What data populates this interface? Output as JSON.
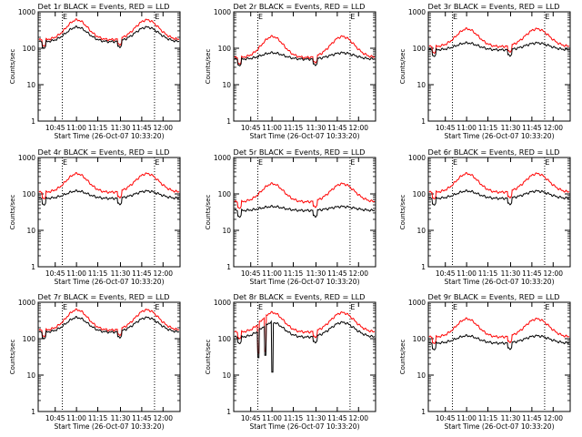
{
  "chart_data": [
    {
      "type": "line",
      "title": "Det 1r BLACK = Events, RED = LLD",
      "ylabel": "Counts/sec",
      "xlabel": "Start Time (26-Oct-07 10:33:20)",
      "xtick_labels": [
        "10:45",
        "11:00",
        "11:15",
        "11:30",
        "11:45",
        "12:00"
      ],
      "ytick_labels": [
        "1",
        "10",
        "100",
        "1000"
      ],
      "marker_labels": [
        "E",
        "E"
      ],
      "ylim": [
        1,
        1000
      ],
      "yscale": "log",
      "series": [
        {
          "color": "#000000",
          "base": 150,
          "peak": 380,
          "drops": []
        },
        {
          "color": "#ff0000",
          "base": 170,
          "peak": 600,
          "drops": []
        }
      ]
    },
    {
      "type": "line",
      "title": "Det 2r BLACK = Events, RED = LLD",
      "ylabel": "Counts/sec",
      "xlabel": "Start Time (26-Oct-07 10:33:20)",
      "xtick_labels": [
        "10:45",
        "11:00",
        "11:15",
        "11:30",
        "11:45",
        "12:00"
      ],
      "ytick_labels": [
        "1",
        "10",
        "100",
        "1000"
      ],
      "marker_labels": [
        "E",
        "E"
      ],
      "ylim": [
        1,
        1000
      ],
      "yscale": "log",
      "series": [
        {
          "color": "#000000",
          "base": 50,
          "peak": 75,
          "drops": []
        },
        {
          "color": "#ff0000",
          "base": 55,
          "peak": 210,
          "drops": []
        }
      ]
    },
    {
      "type": "line",
      "title": "Det 3r BLACK = Events, RED = LLD",
      "ylabel": "Counts/sec",
      "xlabel": "Start Time (26-Oct-07 10:33:20)",
      "xtick_labels": [
        "10:45",
        "11:00",
        "11:15",
        "11:30",
        "11:45",
        "12:00"
      ],
      "ytick_labels": [
        "1",
        "10",
        "100",
        "1000"
      ],
      "marker_labels": [
        "E",
        "E"
      ],
      "ylim": [
        1,
        1000
      ],
      "yscale": "log",
      "series": [
        {
          "color": "#000000",
          "base": 90,
          "peak": 140,
          "drops": []
        },
        {
          "color": "#ff0000",
          "base": 110,
          "peak": 340,
          "drops": []
        }
      ]
    },
    {
      "type": "line",
      "title": "Det 4r BLACK = Events, RED = LLD",
      "ylabel": "Counts/sec",
      "xlabel": "Start Time (26-Oct-07 10:33:20)",
      "xtick_labels": [
        "10:45",
        "11:00",
        "11:15",
        "11:30",
        "11:45",
        "12:00"
      ],
      "ytick_labels": [
        "1",
        "10",
        "100",
        "1000"
      ],
      "marker_labels": [
        "E",
        "E"
      ],
      "ylim": [
        1,
        1000
      ],
      "yscale": "log",
      "series": [
        {
          "color": "#000000",
          "base": 75,
          "peak": 120,
          "drops": []
        },
        {
          "color": "#ff0000",
          "base": 110,
          "peak": 360,
          "drops": []
        }
      ]
    },
    {
      "type": "line",
      "title": "Det 5r BLACK = Events, RED = LLD",
      "ylabel": "Counts/sec",
      "xlabel": "Start Time (26-Oct-07 10:33:20)",
      "xtick_labels": [
        "10:45",
        "11:00",
        "11:15",
        "11:30",
        "11:45",
        "12:00"
      ],
      "ytick_labels": [
        "1",
        "10",
        "100",
        "1000"
      ],
      "marker_labels": [
        "E",
        "E"
      ],
      "ylim": [
        1,
        1000
      ],
      "yscale": "log",
      "series": [
        {
          "color": "#000000",
          "base": 35,
          "peak": 45,
          "drops": []
        },
        {
          "color": "#ff0000",
          "base": 60,
          "peak": 190,
          "drops": []
        }
      ]
    },
    {
      "type": "line",
      "title": "Det 6r BLACK = Events, RED = LLD",
      "ylabel": "Counts/sec",
      "xlabel": "Start Time (26-Oct-07 10:33:20)",
      "xtick_labels": [
        "10:45",
        "11:00",
        "11:15",
        "11:30",
        "11:45",
        "12:00"
      ],
      "ytick_labels": [
        "1",
        "10",
        "100",
        "1000"
      ],
      "marker_labels": [
        "E",
        "E"
      ],
      "ylim": [
        1,
        1000
      ],
      "yscale": "log",
      "series": [
        {
          "color": "#000000",
          "base": 75,
          "peak": 120,
          "drops": []
        },
        {
          "color": "#ff0000",
          "base": 110,
          "peak": 360,
          "drops": []
        }
      ]
    },
    {
      "type": "line",
      "title": "Det 7r BLACK = Events, RED = LLD",
      "ylabel": "Counts/sec",
      "xlabel": "Start Time (26-Oct-07 10:33:20)",
      "xtick_labels": [
        "10:45",
        "11:00",
        "11:15",
        "11:30",
        "11:45",
        "12:00"
      ],
      "ytick_labels": [
        "1",
        "10",
        "100",
        "1000"
      ],
      "marker_labels": [
        "E",
        "E"
      ],
      "ylim": [
        1,
        1000
      ],
      "yscale": "log",
      "series": [
        {
          "color": "#000000",
          "base": 150,
          "peak": 380,
          "drops": []
        },
        {
          "color": "#ff0000",
          "base": 170,
          "peak": 620,
          "drops": []
        }
      ]
    },
    {
      "type": "line",
      "title": "Det 8r BLACK = Events, RED = LLD",
      "ylabel": "Counts/sec",
      "xlabel": "Start Time (26-Oct-07 10:33:20)",
      "xtick_labels": [
        "10:45",
        "11:00",
        "11:15",
        "11:30",
        "11:45",
        "12:00"
      ],
      "ytick_labels": [
        "1",
        "10",
        "100",
        "1000"
      ],
      "marker_labels": [
        "E",
        "E"
      ],
      "ylim": [
        1,
        1000
      ],
      "yscale": "log",
      "series": [
        {
          "color": "#000000",
          "base": 110,
          "peak": 280,
          "drops": [
            {
              "x": 0.17,
              "v": 30
            },
            {
              "x": 0.22,
              "v": 35
            },
            {
              "x": 0.27,
              "v": 12
            }
          ]
        },
        {
          "color": "#ff0000",
          "base": 150,
          "peak": 520,
          "drops": [
            {
              "x": 0.17,
              "v": 40
            },
            {
              "x": 0.22,
              "v": 45
            }
          ]
        }
      ]
    },
    {
      "type": "line",
      "title": "Det 9r BLACK = Events, RED = LLD",
      "ylabel": "Counts/sec",
      "xlabel": "Start Time (26-Oct-07 10:33:20)",
      "xtick_labels": [
        "10:45",
        "11:00",
        "11:15",
        "11:30",
        "11:45",
        "12:00"
      ],
      "ytick_labels": [
        "1",
        "10",
        "100",
        "1000"
      ],
      "marker_labels": [
        "E",
        "E"
      ],
      "ylim": [
        1,
        1000
      ],
      "yscale": "log",
      "series": [
        {
          "color": "#000000",
          "base": 75,
          "peak": 120,
          "drops": []
        },
        {
          "color": "#ff0000",
          "base": 110,
          "peak": 350,
          "drops": []
        }
      ]
    }
  ]
}
